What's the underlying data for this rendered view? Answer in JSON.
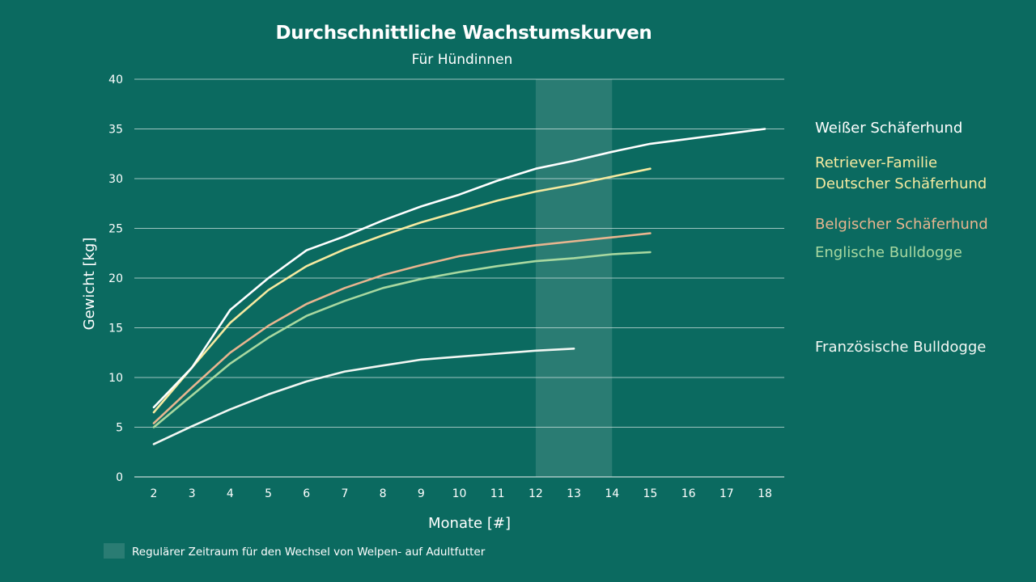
{
  "chart_data": {
    "type": "line",
    "title": "Durchschnittliche Wachstumskurven",
    "subtitle": "Für Hündinnen",
    "xlabel": "Monate [#]",
    "ylabel": "Gewicht [kg]",
    "xlim": [
      2,
      18
    ],
    "ylim": [
      0,
      40
    ],
    "x_ticks": [
      2,
      3,
      4,
      5,
      6,
      7,
      8,
      9,
      10,
      11,
      12,
      13,
      14,
      15,
      16,
      17,
      18
    ],
    "y_ticks": [
      0,
      5,
      10,
      15,
      20,
      25,
      30,
      35,
      40
    ],
    "grid": true,
    "legend_position": "right",
    "highlight": {
      "x_range": [
        12,
        14
      ],
      "label": "Regulärer Zeitraum für den Wechsel von Welpen- auf Adultfutter",
      "color": "#2a7c73"
    },
    "series": [
      {
        "name": "Weißer Schäferhund",
        "color": "#ffffff",
        "x": [
          2,
          3,
          4,
          5,
          6,
          7,
          8,
          9,
          10,
          11,
          12,
          13,
          14,
          15,
          16,
          17,
          18
        ],
        "y": [
          7.0,
          11.0,
          16.8,
          20.0,
          22.8,
          24.2,
          25.8,
          27.2,
          28.4,
          29.8,
          31.0,
          31.8,
          32.7,
          33.5,
          34.0,
          34.5,
          35.0
        ]
      },
      {
        "name": "Retriever-Familie",
        "name2": "Deutscher Schäferhund",
        "color": "#f6eaa0",
        "x": [
          2,
          3,
          4,
          5,
          6,
          7,
          8,
          9,
          10,
          11,
          12,
          13,
          14,
          15
        ],
        "y": [
          6.5,
          11.0,
          15.5,
          18.8,
          21.2,
          22.9,
          24.3,
          25.6,
          26.7,
          27.8,
          28.7,
          29.4,
          30.2,
          31.0
        ]
      },
      {
        "name": "Belgischer Schäferhund",
        "color": "#e8b58f",
        "x": [
          2,
          3,
          4,
          5,
          6,
          7,
          8,
          9,
          10,
          11,
          12,
          13,
          14,
          15
        ],
        "y": [
          5.4,
          9.0,
          12.5,
          15.2,
          17.4,
          19.0,
          20.3,
          21.3,
          22.2,
          22.8,
          23.3,
          23.7,
          24.1,
          24.5
        ]
      },
      {
        "name": "Englische Bulldogge",
        "color": "#a8d8a0",
        "x": [
          2,
          3,
          4,
          5,
          6,
          7,
          8,
          9,
          10,
          11,
          12,
          13,
          14,
          15
        ],
        "y": [
          5.0,
          8.2,
          11.4,
          14.0,
          16.2,
          17.7,
          19.0,
          19.9,
          20.6,
          21.2,
          21.7,
          22.0,
          22.4,
          22.6
        ]
      },
      {
        "name": "Französische Bulldogge",
        "color": "#f2f7f3",
        "x": [
          2,
          3,
          4,
          5,
          6,
          7,
          8,
          9,
          10,
          11,
          12,
          13
        ],
        "y": [
          3.3,
          5.1,
          6.8,
          8.3,
          9.6,
          10.6,
          11.2,
          11.8,
          12.1,
          12.4,
          12.7,
          12.9
        ]
      }
    ]
  }
}
